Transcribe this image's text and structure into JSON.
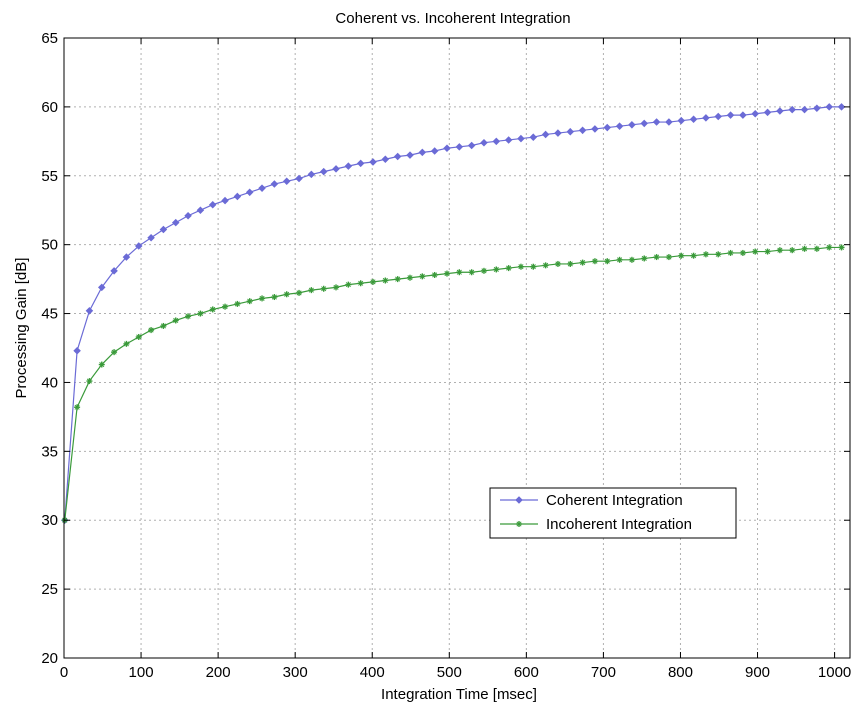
{
  "chart_data": {
    "type": "line",
    "title": "Coherent vs. Incoherent Integration",
    "xlabel": "Integration Time [msec]",
    "ylabel": "Processing Gain [dB]",
    "xlim": [
      0,
      1020
    ],
    "ylim": [
      20,
      65
    ],
    "xticks": [
      0,
      100,
      200,
      300,
      400,
      500,
      600,
      700,
      800,
      900,
      1000
    ],
    "yticks": [
      20,
      25,
      30,
      35,
      40,
      45,
      50,
      55,
      60,
      65
    ],
    "grid": true,
    "legend_position": "lower-right",
    "x": [
      1,
      17,
      33,
      49,
      65,
      81,
      97,
      113,
      129,
      145,
      161,
      177,
      193,
      209,
      225,
      241,
      257,
      273,
      289,
      305,
      321,
      337,
      353,
      369,
      385,
      401,
      417,
      433,
      449,
      465,
      481,
      497,
      513,
      529,
      545,
      561,
      577,
      593,
      609,
      625,
      641,
      657,
      673,
      689,
      705,
      721,
      737,
      753,
      769,
      785,
      801,
      817,
      833,
      849,
      865,
      881,
      897,
      913,
      929,
      945,
      961,
      977,
      993,
      1009
    ],
    "series": [
      {
        "name": "Coherent Integration",
        "color": "#6b6bd6",
        "marker": "diamond",
        "values": [
          30.0,
          42.3,
          45.2,
          46.9,
          48.1,
          49.1,
          49.9,
          50.5,
          51.1,
          51.6,
          52.1,
          52.5,
          52.9,
          53.2,
          53.5,
          53.8,
          54.1,
          54.4,
          54.6,
          54.8,
          55.1,
          55.3,
          55.5,
          55.7,
          55.9,
          56.0,
          56.2,
          56.4,
          56.5,
          56.7,
          56.8,
          57.0,
          57.1,
          57.2,
          57.4,
          57.5,
          57.6,
          57.7,
          57.8,
          58.0,
          58.1,
          58.2,
          58.3,
          58.4,
          58.5,
          58.6,
          58.7,
          58.8,
          58.9,
          58.9,
          59.0,
          59.1,
          59.2,
          59.3,
          59.4,
          59.4,
          59.5,
          59.6,
          59.7,
          59.8,
          59.8,
          59.9,
          60.0,
          60.0
        ]
      },
      {
        "name": "Incoherent Integration",
        "color": "#3a9a3a",
        "marker": "star",
        "values": [
          30.0,
          38.2,
          40.1,
          41.3,
          42.2,
          42.8,
          43.3,
          43.8,
          44.1,
          44.5,
          44.8,
          45.0,
          45.3,
          45.5,
          45.7,
          45.9,
          46.1,
          46.2,
          46.4,
          46.5,
          46.7,
          46.8,
          46.9,
          47.1,
          47.2,
          47.3,
          47.4,
          47.5,
          47.6,
          47.7,
          47.8,
          47.9,
          48.0,
          48.0,
          48.1,
          48.2,
          48.3,
          48.4,
          48.4,
          48.5,
          48.6,
          48.6,
          48.7,
          48.8,
          48.8,
          48.9,
          48.9,
          49.0,
          49.1,
          49.1,
          49.2,
          49.2,
          49.3,
          49.3,
          49.4,
          49.4,
          49.5,
          49.5,
          49.6,
          49.6,
          49.7,
          49.7,
          49.8,
          49.8
        ]
      }
    ]
  },
  "colors": {
    "background": "#ffffff",
    "axes_frame": "#000000",
    "grid": "#b0b0b0"
  }
}
